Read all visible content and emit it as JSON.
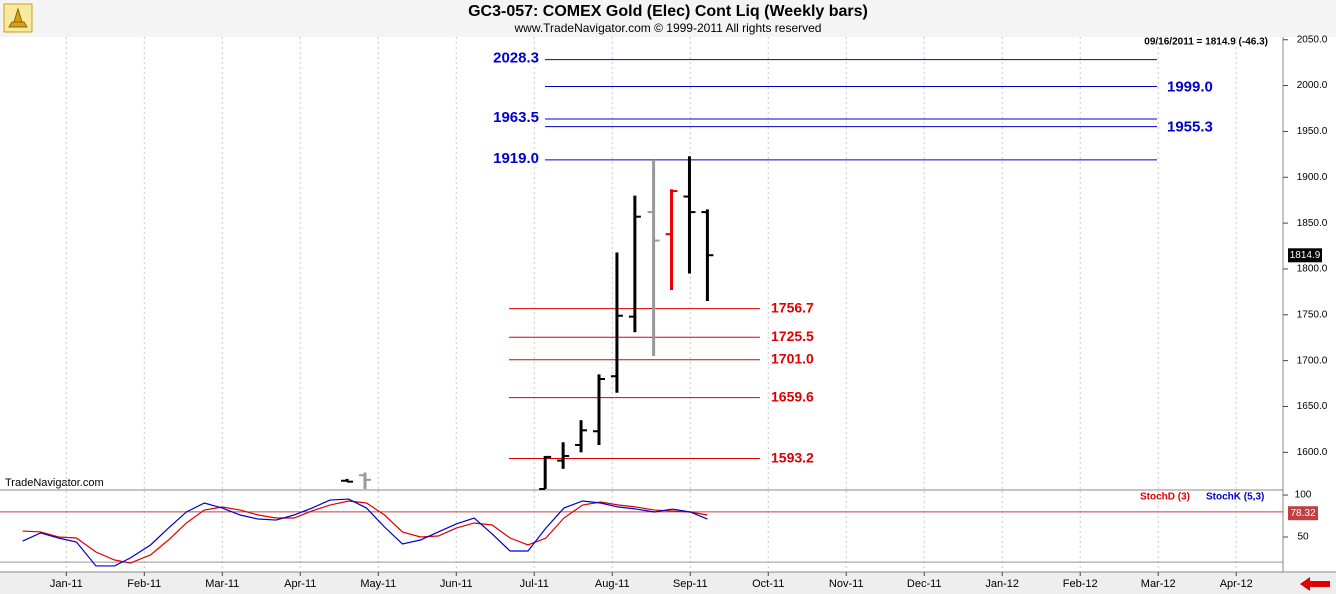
{
  "header": {
    "title": "GC3-057:  COMEX Gold (Elec) Cont Liq  (Weekly bars)",
    "subtitle": "www.TradeNavigator.com © 1999-2011 All rights reserved"
  },
  "chart_data": [
    {
      "type": "ohlc",
      "watermark": "TradeNavigator.com",
      "last_label": "09/16/2011 = 1814.9 (-46.3)",
      "last_value": 1814.9,
      "x": [
        3.6,
        3.83,
        6.14,
        6.37,
        6.6,
        6.83,
        7.06,
        7.29,
        7.53,
        7.76,
        7.99,
        8.22
      ],
      "open": [
        1569,
        1575,
        1560,
        1591,
        1608,
        1623,
        1683,
        1748,
        1862,
        1838,
        1879,
        1862
      ],
      "high": [
        1571,
        1578,
        1596,
        1611,
        1635,
        1685,
        1818,
        1880,
        1919,
        1887,
        1923,
        1865
      ],
      "low": [
        1568,
        1560,
        1560,
        1582,
        1600,
        1608,
        1665,
        1731,
        1705,
        1777,
        1795,
        1765
      ],
      "close": [
        1568,
        1570,
        1595,
        1596,
        1624,
        1680,
        1749,
        1857,
        1831,
        1885,
        1862,
        1815
      ],
      "colors": [
        "#000000",
        "#999999",
        "#000000",
        "#000000",
        "#000000",
        "#000000",
        "#000000",
        "#000000",
        "#999999",
        "#ee0000",
        "#000000",
        "#000000"
      ],
      "ylim": [
        1560,
        2053
      ],
      "yticks": [
        {
          "value": 1600,
          "label": "1600.0"
        },
        {
          "value": 1650,
          "label": "1650.0"
        },
        {
          "value": 1700,
          "label": "1700.0"
        },
        {
          "value": 1750,
          "label": "1750.0"
        },
        {
          "value": 1800,
          "label": "1800.0"
        },
        {
          "value": 1850,
          "label": "1850.0"
        },
        {
          "value": 1900,
          "label": "1900.0"
        },
        {
          "value": 1950,
          "label": "1950.0"
        },
        {
          "value": 2000,
          "label": "2000.0"
        },
        {
          "value": 2050,
          "label": "2050.0"
        }
      ],
      "grid": true,
      "levels": [
        {
          "color": "#0000cc",
          "values": [
            2028.3,
            1999.0,
            1963.5,
            1955.3,
            1919.0
          ],
          "value_labels": [
            "2028.3",
            "1999.0",
            "1963.5",
            "1955.3",
            "1919.0"
          ]
        },
        {
          "color": "#dd0000",
          "values": [
            1756.7,
            1725.5,
            1701.0,
            1659.6,
            1593.2
          ],
          "value_labels": [
            "1756.7",
            "1725.5",
            "1701.0",
            "1659.6",
            "1593.2"
          ]
        }
      ]
    },
    {
      "type": "line",
      "x": [
        -0.56,
        -0.33,
        -0.1,
        0.13,
        0.38,
        0.62,
        0.82,
        1.08,
        1.31,
        1.54,
        1.77,
        2.0,
        2.23,
        2.46,
        2.69,
        2.92,
        3.15,
        3.38,
        3.62,
        3.85,
        4.08,
        4.31,
        4.54,
        4.77,
        5.0,
        5.23,
        5.46,
        5.69,
        5.92,
        6.15,
        6.38,
        6.62,
        6.85,
        7.08,
        7.31,
        7.54,
        7.77,
        8.0,
        8.22
      ],
      "series": [
        {
          "name": "StochD (3)",
          "color": "#dd0000",
          "values": [
            57.1,
            56.0,
            50.0,
            48.8,
            32.1,
            22.6,
            19.0,
            28.6,
            46.4,
            66.7,
            82.1,
            85.7,
            82.1,
            76.2,
            72.6,
            72.6,
            81.0,
            88.1,
            92.9,
            90.5,
            76.2,
            56.0,
            50.0,
            51.2,
            60.7,
            66.7,
            64.3,
            48.8,
            40.5,
            48.8,
            72.6,
            88.1,
            91.7,
            88.1,
            85.7,
            82.1,
            81.0,
            79.8,
            76.2
          ]
        },
        {
          "name": "StochK (5,3)",
          "color": "#0000cc",
          "values": [
            45.2,
            54.8,
            48.8,
            44.0,
            15.5,
            15.5,
            25.0,
            40.5,
            60.7,
            79.8,
            90.5,
            84.5,
            76.2,
            71.4,
            70.2,
            76.2,
            84.5,
            94.0,
            95.2,
            84.5,
            61.9,
            41.7,
            46.4,
            56.0,
            65.5,
            72.6,
            53.6,
            33.3,
            33.3,
            60.7,
            84.5,
            92.9,
            90.5,
            85.7,
            83.3,
            79.8,
            83.3,
            79.8,
            71.4
          ]
        }
      ],
      "ylim": [
        8.3,
        104.8
      ],
      "yticks": [
        100,
        50
      ],
      "hlines": [
        80,
        20
      ],
      "last_value": 78.32,
      "xlim": [
        -0.85,
        15.6
      ],
      "xticks": [
        {
          "value": 0,
          "label": "Jan-11"
        },
        {
          "value": 1,
          "label": "Feb-11"
        },
        {
          "value": 2,
          "label": "Mar-11"
        },
        {
          "value": 3,
          "label": "Apr-11"
        },
        {
          "value": 4,
          "label": "May-11"
        },
        {
          "value": 5,
          "label": "Jun-11"
        },
        {
          "value": 6,
          "label": "Jul-11"
        },
        {
          "value": 7,
          "label": "Aug-11"
        },
        {
          "value": 8,
          "label": "Sep-11"
        },
        {
          "value": 9,
          "label": "Oct-11"
        },
        {
          "value": 10,
          "label": "Nov-11"
        },
        {
          "value": 11,
          "label": "Dec-11"
        },
        {
          "value": 12,
          "label": "Jan-12"
        },
        {
          "value": 13,
          "label": "Feb-12"
        },
        {
          "value": 14,
          "label": "Mar-12"
        },
        {
          "value": 15,
          "label": "Apr-12"
        }
      ]
    }
  ]
}
